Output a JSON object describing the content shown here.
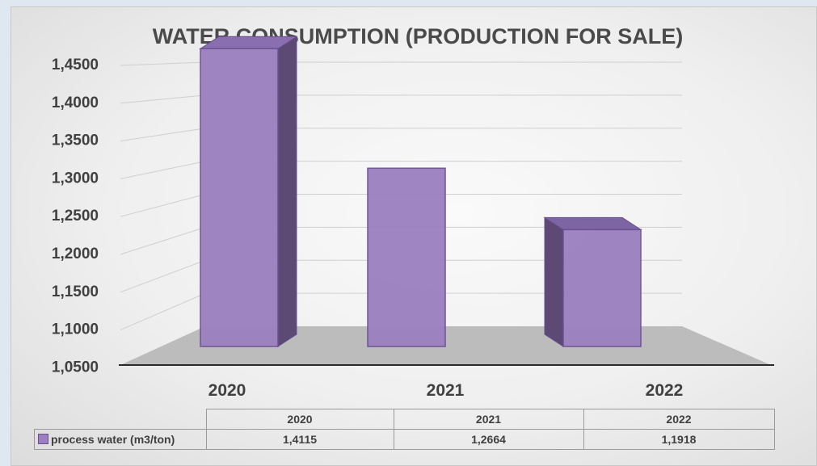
{
  "chart_data": {
    "type": "bar",
    "title": "WATER CONSUMPTION (PRODUCTION FOR SALE)",
    "categories": [
      "2020",
      "2021",
      "2022"
    ],
    "series": [
      {
        "name": "process water (m3/ton)",
        "values": [
          1.4115,
          1.2664,
          1.1918
        ],
        "display_values": [
          "1,4115",
          "1,2664",
          "1,1918"
        ]
      }
    ],
    "ylim": [
      1.05,
      1.45
    ],
    "yticks": [
      1.45,
      1.4,
      1.35,
      1.3,
      1.25,
      1.2,
      1.15,
      1.1,
      1.05
    ],
    "ytick_labels": [
      "1,4500",
      "1,4000",
      "1,3500",
      "1,3000",
      "1,2500",
      "1,2000",
      "1,1500",
      "1,1000",
      "1,0500"
    ],
    "grid": true,
    "style": "3d-column",
    "legend": "data-table",
    "colors": {
      "bar_front": "#9b7fc0",
      "bar_side": "#5c4a74",
      "bar_edge": "#6a4f8f",
      "floor": "#bcbcbc"
    }
  }
}
